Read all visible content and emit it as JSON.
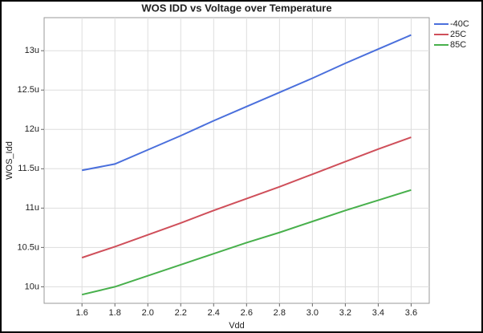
{
  "chart_data": {
    "type": "line",
    "title": "WOS IDD vs Voltage over Temperature",
    "x_label": "Vdd",
    "y_label": "WOS_Idd",
    "x": [
      1.6,
      1.8,
      2.0,
      2.2,
      2.4,
      2.6,
      2.8,
      3.0,
      3.2,
      3.4,
      3.6
    ],
    "series": [
      {
        "name": "-40C",
        "color": "#4a6fdc",
        "values": [
          11.48,
          11.56,
          11.74,
          11.92,
          12.11,
          12.29,
          12.47,
          12.65,
          12.84,
          13.02,
          13.2
        ]
      },
      {
        "name": "25C",
        "color": "#cf4f5a",
        "values": [
          10.37,
          10.51,
          10.66,
          10.81,
          10.97,
          11.12,
          11.27,
          11.43,
          11.59,
          11.75,
          11.9
        ]
      },
      {
        "name": "85C",
        "color": "#48b04c",
        "values": [
          9.9,
          10.0,
          10.14,
          10.28,
          10.42,
          10.56,
          10.69,
          10.83,
          10.97,
          11.1,
          11.23
        ]
      }
    ],
    "xlim": [
      1.37,
      3.71
    ],
    "xticks": [
      1.6,
      1.8,
      {
        "value": 2,
        "label": "2.0"
      },
      2.2,
      2.4,
      2.6,
      2.8,
      {
        "value": 3,
        "label": "3.0"
      },
      3.2,
      3.4,
      3.6
    ],
    "ylim": [
      9.79,
      13.42
    ],
    "yticks": [
      {
        "value": 10,
        "label": "10u"
      },
      {
        "value": 10.5,
        "label": "10.5u"
      },
      {
        "value": 11,
        "label": "11u"
      },
      {
        "value": 11.5,
        "label": "11.5u"
      },
      {
        "value": 12,
        "label": "12u"
      },
      {
        "value": 12.5,
        "label": "12.5u"
      },
      {
        "value": 13,
        "label": "13u"
      }
    ],
    "grid": true,
    "legend": "right"
  }
}
